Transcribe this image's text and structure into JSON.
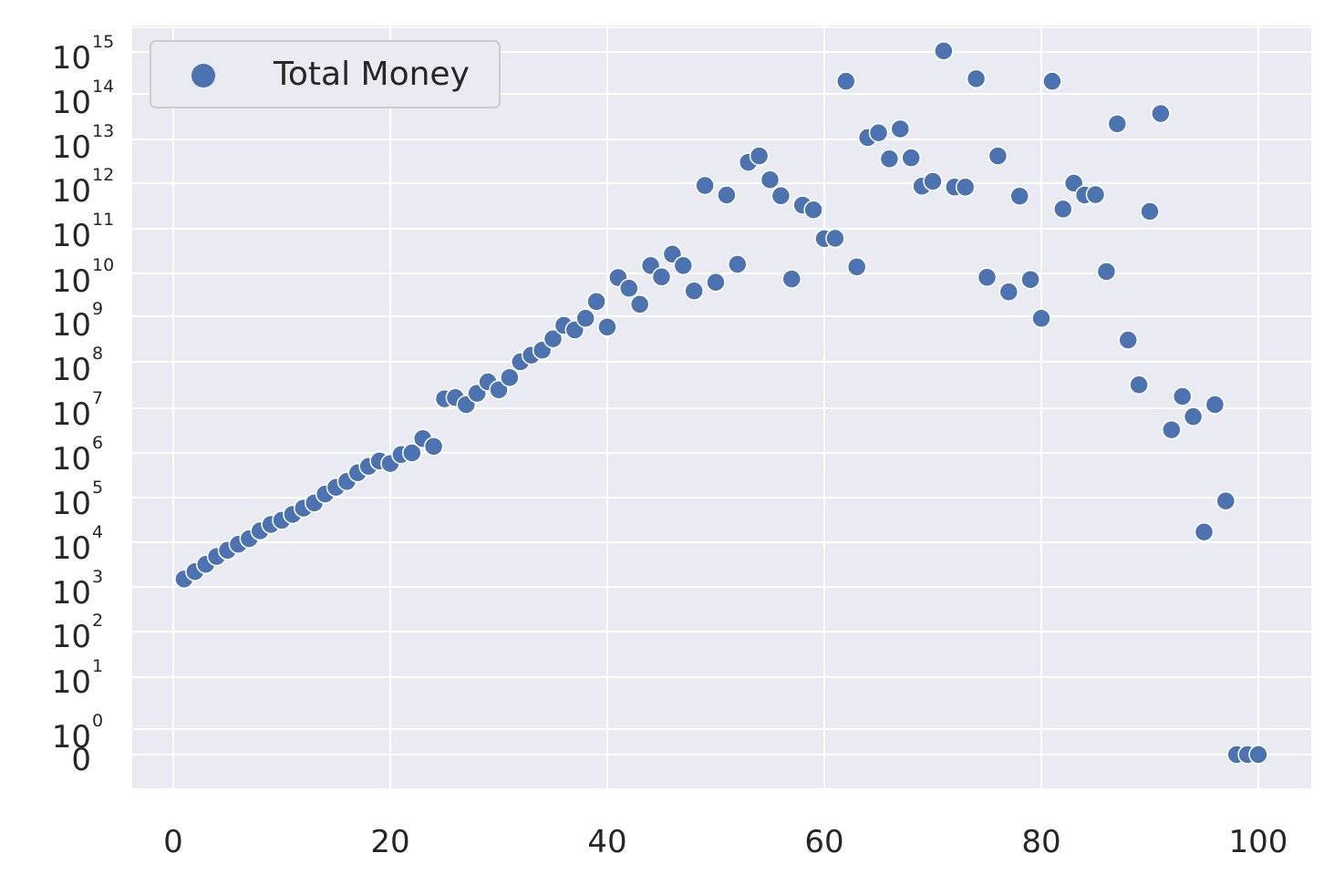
{
  "chart_data": {
    "type": "scatter",
    "title": "",
    "xlabel": "",
    "ylabel": "",
    "xlim": [
      -2,
      102
    ],
    "x_ticks": [
      0,
      20,
      40,
      60,
      80,
      100
    ],
    "grid": true,
    "legend": {
      "placement": "top-left",
      "entries": [
        "Total Money"
      ]
    },
    "colors": {
      "marker": "#4c72b0",
      "background": "#eaeaf2",
      "grid": "#ffffff",
      "legend_bg": "#eaeaf2",
      "legend_border": "#cccccc"
    },
    "y_tick_labels": [
      {
        "base": "10",
        "exp": "15"
      },
      {
        "base": "10",
        "exp": "14"
      },
      {
        "base": "10",
        "exp": "13"
      },
      {
        "base": "10",
        "exp": "12"
      },
      {
        "base": "10",
        "exp": "11"
      },
      {
        "base": "10",
        "exp": "10"
      },
      {
        "base": "10",
        "exp": "9"
      },
      {
        "base": "10",
        "exp": "8"
      },
      {
        "base": "10",
        "exp": "7"
      },
      {
        "base": "10",
        "exp": "6"
      },
      {
        "base": "10",
        "exp": "5"
      },
      {
        "base": "10",
        "exp": "4"
      },
      {
        "base": "10",
        "exp": "3"
      },
      {
        "base": "10",
        "exp": "2"
      },
      {
        "base": "10",
        "exp": "1"
      },
      {
        "base": "10",
        "exp": "0"
      },
      {
        "base": "0",
        "exp": ""
      }
    ],
    "series": [
      {
        "name": "Total Money",
        "x": [
          1,
          2,
          3,
          4,
          5,
          6,
          7,
          8,
          9,
          10,
          11,
          12,
          13,
          14,
          15,
          16,
          17,
          18,
          19,
          20,
          21,
          22,
          23,
          24,
          25,
          26,
          27,
          28,
          29,
          30,
          31,
          32,
          33,
          34,
          35,
          36,
          37,
          38,
          39,
          40,
          41,
          42,
          43,
          44,
          45,
          46,
          47,
          48,
          49,
          50,
          51,
          52,
          53,
          54,
          55,
          56,
          57,
          58,
          59,
          60,
          61,
          62,
          63,
          64,
          65,
          66,
          67,
          68,
          69,
          70,
          71,
          72,
          73,
          74,
          75,
          76,
          77,
          78,
          79,
          80,
          81,
          82,
          83,
          84,
          85,
          86,
          87,
          88,
          89,
          90,
          91,
          92,
          93,
          94,
          95,
          96,
          97,
          98,
          99,
          100
        ],
        "y": [
          "1.5e2",
          "2.2e2",
          "3.2e2",
          "4.8e2",
          "6.6e2",
          "9.0e2",
          "1.2e3",
          "1.8e3",
          "2.5e3",
          "3.1e3",
          "4.2e3",
          "5.8e3",
          "7.6e3",
          "1.2e4",
          "1.7e4",
          "2.3e4",
          "3.6e4",
          "5.0e4",
          "6.6e4",
          "5.8e4",
          "9.2e4",
          "1.0e5",
          "2.1e5",
          "1.4e5",
          "1.6e6",
          "1.7e6",
          "1.2e6",
          "2.1e6",
          "3.7e6",
          "2.5e6",
          "4.6e6",
          "1.0e7",
          "1.4e7",
          "1.8e7",
          "3.2e7",
          "6.3e7",
          "5.0e7",
          "9.0e7",
          "2.2e8",
          "5.8e7",
          "8.0e8",
          "4.5e8",
          "1.9e8",
          "1.5e9",
          "8.3e8",
          "2.7e9",
          "1.5e9",
          "3.9e8",
          "8.9e10",
          "6.2e8",
          "5.5e10",
          "1.6e9",
          "3.0e11",
          "4.2e11",
          "1.2e11",
          "5.3e10",
          "7.4e8",
          "3.3e10",
          "2.6e10",
          "6.0e9",
          "6.1e9",
          "2.0e13",
          "1.4e9",
          "1.1e12",
          "1.4e12",
          "3.6e11",
          "1.7e12",
          "3.8e11",
          "8.6e10",
          "1.1e11",
          "1.1e14",
          "8.2e10",
          "8.2e10",
          "2.3e13",
          "8.1e8",
          "4.2e11",
          "3.7e8",
          "5.2e10",
          "7.2e8",
          "9.0e7",
          "2.0e13",
          "2.7e10",
          "1.0e11",
          "5.5e10",
          "5.6e10",
          "1.1e9",
          "2.2e12",
          "3.0e7",
          "3.2e6",
          "2.4e10",
          "3.7e12",
          "3.3e5",
          "1.8e6",
          "6.5e5",
          "1.7e3",
          "1.2e6",
          "8.4e3",
          "0",
          "0",
          "0"
        ]
      }
    ]
  }
}
